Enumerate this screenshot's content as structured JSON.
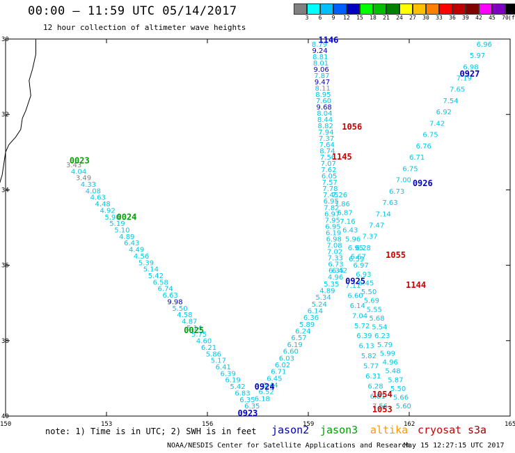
{
  "title": "00:00 – 11:59 UTC 05/14/2017",
  "subtitle": "12 hour collection of altimeter wave heights",
  "legend": {
    "unit": "(ft)",
    "colors": [
      "#808080",
      "#00ffff",
      "#00c0ff",
      "#0060ff",
      "#0000c0",
      "#00ff00",
      "#00c000",
      "#008000",
      "#ffff00",
      "#ffc000",
      "#ff8000",
      "#ff0000",
      "#c00000",
      "#800000",
      "#ff00ff",
      "#8000c0",
      "#000000"
    ],
    "labels": [
      "3",
      "6",
      "9",
      "12",
      "15",
      "18",
      "21",
      "24",
      "27",
      "30",
      "33",
      "36",
      "39",
      "42",
      "45",
      "70"
    ]
  },
  "axes": {
    "lat_labels": [
      "30",
      "32",
      "34",
      "36",
      "38",
      "40"
    ],
    "lon_labels": [
      "150",
      "153",
      "156",
      "159",
      "162",
      "165"
    ]
  },
  "tracks": [
    {
      "mission": "jason3",
      "time": "0023",
      "values": [
        "3.43",
        "4.04",
        "3.49",
        "4.33",
        "4.08",
        "4.63",
        "4.48",
        "4.92",
        "5.90",
        "5.19",
        "5.10",
        "4.89",
        "6.43",
        "4.49",
        "4.56",
        "5.39",
        "5.14",
        "5.42",
        "6.58",
        "6.74",
        "6.63",
        "9.98",
        "5.50",
        "4.58",
        "4.87",
        "5.14",
        "5.75",
        "4.60",
        "6.21",
        "5.86",
        "5.17",
        "6.41",
        "6.39",
        "6.19",
        "5.42",
        "6.83",
        "6.35",
        "6.35"
      ]
    },
    {
      "mission": "jason3",
      "time": "0024",
      "values": []
    },
    {
      "mission": "jason3",
      "time": "0025",
      "values": []
    },
    {
      "mission": "jason2",
      "time": "0923",
      "values": [
        "6.18",
        "6.52",
        "6.44",
        "6.45",
        "6.71",
        "6.02",
        "6.03",
        "6.60",
        "6.19",
        "6.57",
        "6.24",
        "5.89",
        "6.36",
        "6.14",
        "5.24",
        "5.34",
        "4.89",
        "5.35",
        "4.96",
        "6.42"
      ]
    },
    {
      "mission": "jason2",
      "time": "0924",
      "values": []
    },
    {
      "mission": "jason2",
      "time": "0925",
      "values": [
        "7.11",
        "6.60",
        "6.14",
        "7.04",
        "5.72",
        "6.39",
        "6.13",
        "5.82",
        "5.77",
        "6.31",
        "6.28",
        "6.81",
        "7.56"
      ]
    },
    {
      "mission": "jason2",
      "time": "0926",
      "values": [
        "7.26",
        "7.86",
        "6.87",
        "7.16",
        "6.43",
        "5.96",
        "6.95",
        "6.67",
        "6.97",
        "6.93",
        "6.45",
        "5.50",
        "5.69",
        "5.55",
        "5.68",
        "5.54",
        "6.23",
        "5.79",
        "5.99",
        "4.96",
        "5.48",
        "5.87",
        "5.50",
        "5.66",
        "5.60"
      ]
    },
    {
      "mission": "jason2",
      "time": "0927",
      "values": [
        "6.96",
        "5.97",
        "6.98",
        "7.19",
        "7.65",
        "7.54",
        "6.92",
        "7.42",
        "6.75",
        "6.76",
        "6.71",
        "6.75",
        "7.00",
        "6.73",
        "7.63",
        "7.14",
        "7.47",
        "7.37",
        "6.28",
        "6.59"
      ]
    },
    {
      "mission": "jason2",
      "time": "1146",
      "values": [
        "8.79",
        "9.24",
        "8.81",
        "8.01",
        "9.06",
        "7.87",
        "9.47",
        "8.11",
        "8.95",
        "7.60",
        "9.68",
        "8.04",
        "8.44",
        "8.82",
        "7.94",
        "7.37",
        "7.64",
        "8.74",
        "7.56",
        "7.07",
        "7.62",
        "6.05",
        "7.57",
        "7.78",
        "7.45",
        "6.95",
        "7.82",
        "6.97",
        "7.95",
        "6.95",
        "6.19",
        "6.98",
        "7.08",
        "7.02",
        "7.33",
        "6.73",
        "6.35"
      ]
    },
    {
      "mission": "cryosat",
      "time": "1055",
      "values": []
    },
    {
      "mission": "cryosat",
      "time": "1056",
      "values": []
    },
    {
      "mission": "cryosat",
      "time": "1145",
      "values": []
    },
    {
      "mission": "cryosat",
      "time": "1144",
      "values": []
    },
    {
      "mission": "cryosat",
      "time": "1054",
      "values": []
    },
    {
      "mission": "cryosat",
      "time": "1053",
      "values": []
    }
  ],
  "note": "note: 1) Time is in UTC; 2) SWH is in feet",
  "missions": [
    "jason2",
    "jason3",
    "altika",
    "cryosat",
    "s3a"
  ],
  "mission_colors": {
    "jason2": "#0000c0",
    "jason3": "#00a000",
    "altika": "#ff9900",
    "cryosat": "#cc0000",
    "s3a": "#990000"
  },
  "credit": "NOAA/NESDIS Center for Satellite Applications and Research",
  "timestamp": "May 15 12:27:15 UTC 2017"
}
